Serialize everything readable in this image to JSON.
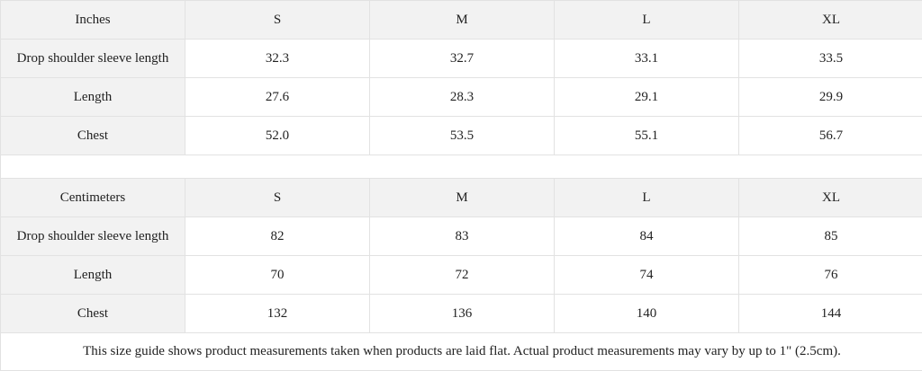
{
  "tables": [
    {
      "unit": "Inches",
      "sizes": [
        "S",
        "M",
        "L",
        "XL"
      ],
      "rows": [
        {
          "label": "Drop shoulder sleeve length",
          "values": [
            "32.3",
            "32.7",
            "33.1",
            "33.5"
          ]
        },
        {
          "label": "Length",
          "values": [
            "27.6",
            "28.3",
            "29.1",
            "29.9"
          ]
        },
        {
          "label": "Chest",
          "values": [
            "52.0",
            "53.5",
            "55.1",
            "56.7"
          ]
        }
      ]
    },
    {
      "unit": "Centimeters",
      "sizes": [
        "S",
        "M",
        "L",
        "XL"
      ],
      "rows": [
        {
          "label": "Drop shoulder sleeve length",
          "values": [
            "82",
            "83",
            "84",
            "85"
          ]
        },
        {
          "label": "Length",
          "values": [
            "70",
            "72",
            "74",
            "76"
          ]
        },
        {
          "label": "Chest",
          "values": [
            "132",
            "136",
            "140",
            "144"
          ]
        }
      ]
    }
  ],
  "footnote": "This size guide shows product measurements taken when products are laid flat.  Actual product measurements may vary by up to 1\" (2.5cm).",
  "colors": {
    "header_bg": "#f2f2f2",
    "border": "#e2e2e2",
    "text": "#222222"
  }
}
